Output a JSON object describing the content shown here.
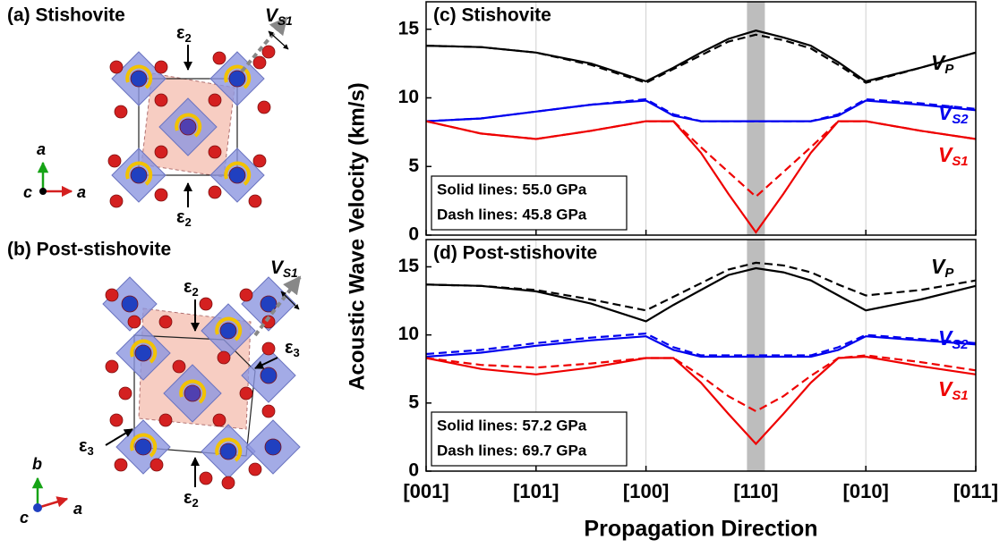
{
  "panels": [
    {
      "label": "(a) Stishovite",
      "strain_labels": [
        "ε2",
        "ε2"
      ],
      "wave_label": "VS1",
      "axes": [
        "a",
        "c",
        "a"
      ]
    },
    {
      "label": "(b) Post-stishovite",
      "strain_labels": [
        "ε2",
        "ε3",
        "ε3",
        "ε2"
      ],
      "wave_label": "VS1",
      "axes": [
        "b",
        "c",
        "a"
      ]
    }
  ],
  "chart_data": [
    {
      "type": "line",
      "title": "(c) Stishovite",
      "x": [
        0,
        0.5,
        1,
        1.5,
        2,
        2.25,
        2.5,
        2.75,
        3,
        3.25,
        3.5,
        3.75,
        4,
        4.5,
        5
      ],
      "xlim": [
        0,
        5
      ],
      "xticks": [
        0,
        1,
        2,
        3,
        4,
        5
      ],
      "ylim": [
        0,
        17
      ],
      "yticks": [
        0,
        5,
        10,
        15
      ],
      "grid": "x",
      "series": [
        {
          "name": "VP",
          "color": "#000000",
          "values": [
            13.8,
            13.7,
            13.3,
            12.5,
            11.2,
            12.2,
            13.3,
            14.3,
            14.9,
            14.4,
            13.8,
            12.6,
            11.2,
            12.2,
            13.3
          ],
          "dashed_values": [
            13.8,
            13.7,
            13.3,
            12.4,
            11.1,
            12.1,
            13.1,
            14.1,
            14.6,
            14.2,
            13.6,
            12.4,
            11.1,
            12.2,
            13.3
          ]
        },
        {
          "name": "VS2",
          "color": "#0000ee",
          "values": [
            8.3,
            8.5,
            9.0,
            9.5,
            9.8,
            8.7,
            8.3,
            8.3,
            8.3,
            8.3,
            8.3,
            8.7,
            9.8,
            9.5,
            9.1
          ],
          "dashed_values": [
            8.3,
            8.5,
            9.0,
            9.5,
            9.9,
            8.8,
            8.3,
            8.3,
            8.3,
            8.3,
            8.3,
            8.8,
            9.9,
            9.6,
            9.2
          ]
        },
        {
          "name": "VS1",
          "color": "#ee0000",
          "values": [
            8.3,
            7.4,
            7.0,
            7.6,
            8.3,
            8.3,
            6.0,
            3.0,
            0.2,
            3.0,
            6.0,
            8.3,
            8.3,
            7.6,
            7.0
          ],
          "dashed_values": [
            8.3,
            7.4,
            7.0,
            7.6,
            8.3,
            8.3,
            6.4,
            4.6,
            2.8,
            4.6,
            6.4,
            8.3,
            8.3,
            7.6,
            7.0
          ]
        }
      ],
      "annotations": [
        "Solid lines: 55.0 GPa",
        "Dash lines: 45.8 GPa"
      ]
    },
    {
      "type": "line",
      "title": "(d) Post-stishovite",
      "x": [
        0,
        0.5,
        1,
        1.5,
        2,
        2.25,
        2.5,
        2.75,
        3,
        3.25,
        3.5,
        3.75,
        4,
        4.5,
        5
      ],
      "xlim": [
        0,
        5
      ],
      "xticks": [
        {
          "value": 0,
          "label": "[001]"
        },
        {
          "value": 1,
          "label": "[101]"
        },
        {
          "value": 2,
          "label": "[100]"
        },
        {
          "value": 3,
          "label": "[110]"
        },
        {
          "value": 4,
          "label": "[010]"
        },
        {
          "value": 5,
          "label": "[011]"
        }
      ],
      "ylim": [
        0,
        17
      ],
      "yticks": [
        0,
        5,
        10,
        15
      ],
      "grid": "x",
      "xlabel": "Propagation Direction",
      "ylabel": "Acoustic Wave Velocity (km/s)",
      "series": [
        {
          "name": "VP",
          "color": "#000000",
          "values": [
            13.7,
            13.6,
            13.2,
            12.3,
            11.0,
            12.2,
            13.3,
            14.4,
            14.9,
            14.6,
            14.0,
            12.9,
            11.8,
            12.6,
            13.6
          ],
          "dashed_values": [
            13.7,
            13.6,
            13.3,
            12.6,
            11.8,
            12.8,
            13.8,
            14.8,
            15.3,
            15.1,
            14.6,
            13.7,
            12.9,
            13.3,
            14.0
          ]
        },
        {
          "name": "VS2",
          "color": "#0000ee",
          "values": [
            8.4,
            8.7,
            9.2,
            9.6,
            9.9,
            8.9,
            8.4,
            8.4,
            8.4,
            8.4,
            8.4,
            8.9,
            9.9,
            9.6,
            9.3
          ],
          "dashed_values": [
            8.6,
            8.9,
            9.4,
            9.8,
            10.1,
            9.1,
            8.5,
            8.5,
            8.5,
            8.5,
            8.5,
            9.1,
            10.0,
            9.7,
            9.4
          ]
        },
        {
          "name": "VS1",
          "color": "#ee0000",
          "values": [
            8.3,
            7.5,
            7.1,
            7.6,
            8.3,
            8.3,
            6.5,
            4.2,
            2.0,
            4.2,
            6.5,
            8.3,
            8.4,
            7.7,
            7.1
          ],
          "dashed_values": [
            8.3,
            7.8,
            7.6,
            7.9,
            8.3,
            8.3,
            7.0,
            5.5,
            4.4,
            5.5,
            7.0,
            8.3,
            8.5,
            8.0,
            7.4
          ]
        }
      ],
      "annotations": [
        "Solid lines: 57.2 GPa",
        "Dash lines: 69.7 GPa"
      ]
    }
  ]
}
